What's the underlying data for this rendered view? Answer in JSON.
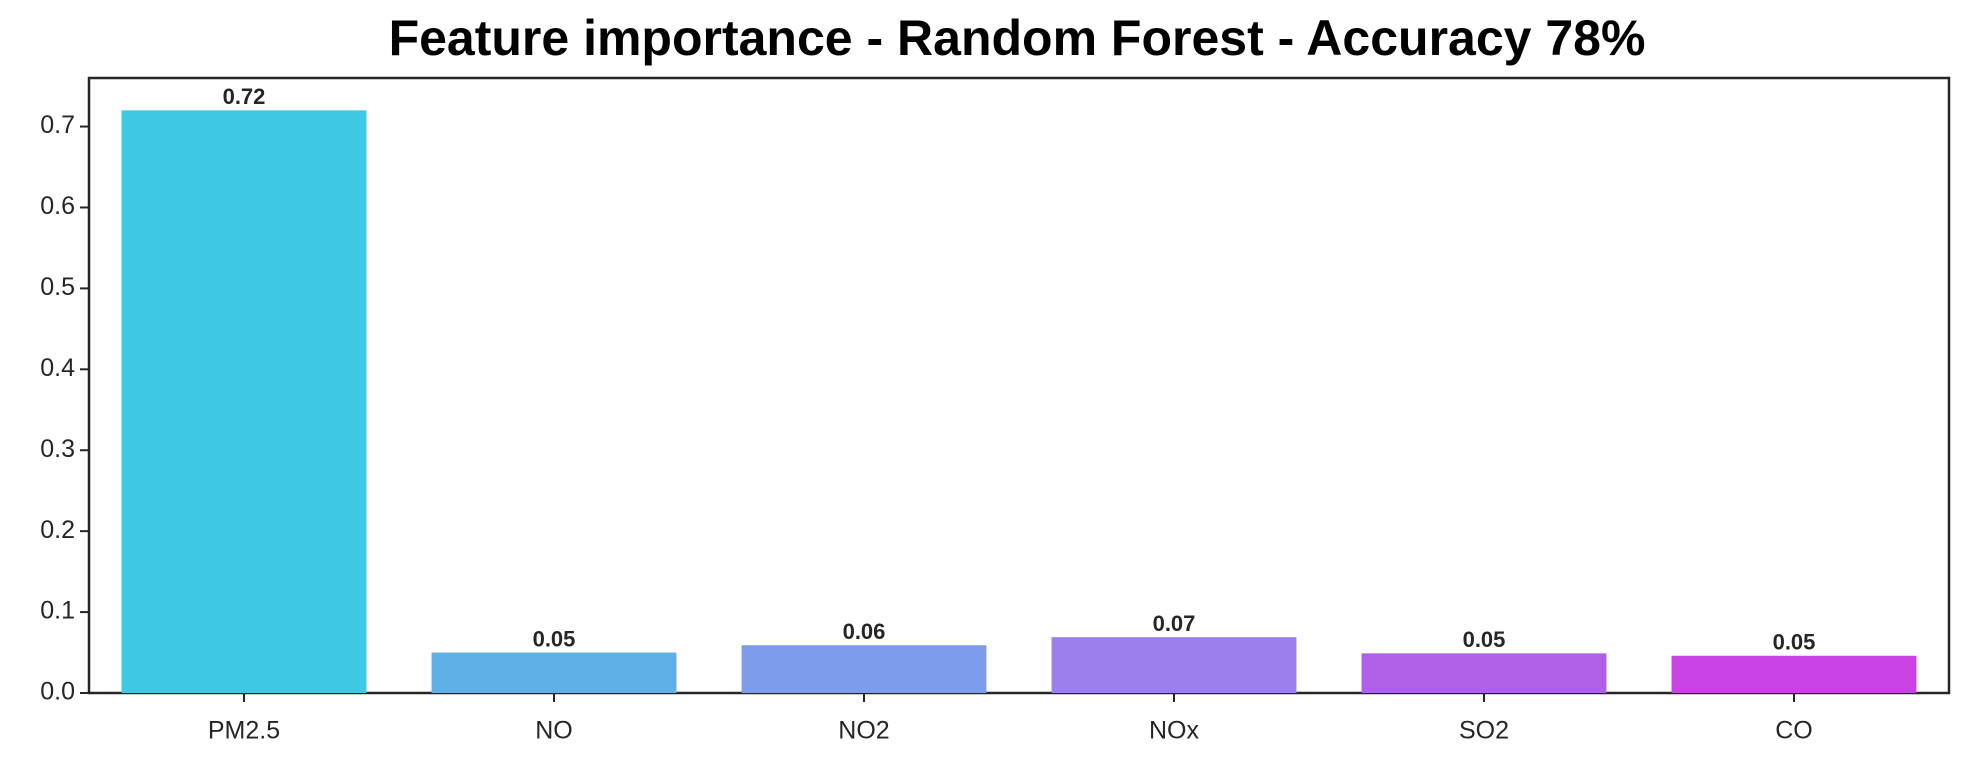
{
  "chart_data": {
    "type": "bar",
    "title": "Feature importance - Random Forest - Accuracy 78%",
    "categories": [
      "PM2.5",
      "NO",
      "NO2",
      "NOx",
      "SO2",
      "CO"
    ],
    "values": [
      0.72,
      0.05,
      0.059,
      0.069,
      0.049,
      0.046
    ],
    "value_labels": [
      "0.72",
      "0.05",
      "0.06",
      "0.07",
      "0.05",
      "0.05"
    ],
    "colors": [
      "#3ec8e4",
      "#5eb0e6",
      "#7d9ceb",
      "#9b80eb",
      "#b060e6",
      "#c842e4"
    ],
    "ylim": [
      0,
      0.76
    ],
    "yticks": [
      0.0,
      0.1,
      0.2,
      0.3,
      0.4,
      0.5,
      0.6,
      0.7
    ],
    "grid": false
  }
}
